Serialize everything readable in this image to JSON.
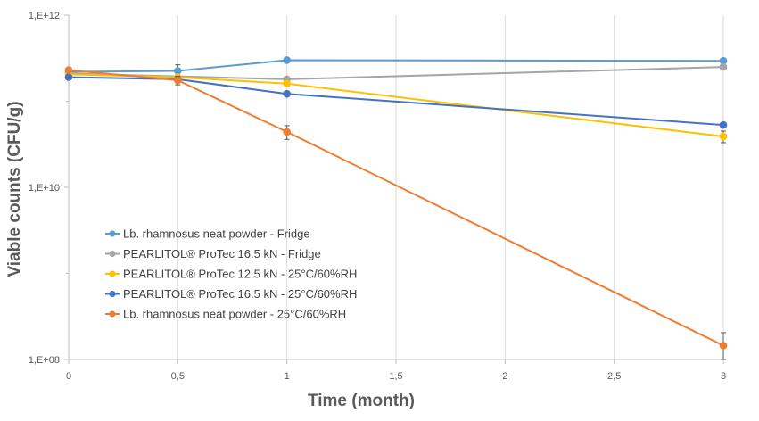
{
  "chart_data": {
    "type": "line",
    "title": "",
    "xlabel": "Time (month)",
    "ylabel": "Viable counts (CFU/g)",
    "yscale": "log",
    "xlim": [
      0,
      3
    ],
    "ylim": [
      100000000,
      1000000000000
    ],
    "x_ticks": [
      0,
      0.5,
      1,
      1.5,
      2,
      2.5,
      3
    ],
    "x_tick_labels": [
      "0",
      "0,5",
      "1",
      "1,5",
      "2",
      "2,5",
      "3"
    ],
    "y_ticks": [
      100000000,
      10000000000,
      1000000000000
    ],
    "y_tick_labels": [
      "1,E+08",
      "1,E+10",
      "1,E+12"
    ],
    "grid": "vertical",
    "legend_position": "bottom-left",
    "series": [
      {
        "name": "Lb. rhamnosus neat powder - Fridge",
        "color": "#5B9BD5",
        "x": [
          0,
          0.5,
          1,
          3
        ],
        "y": [
          220000000000,
          225000000000,
          300000000000,
          295000000000
        ],
        "err": [
          null,
          40000000000,
          null,
          null
        ]
      },
      {
        "name": "PEARLITOL® ProTec 16.5 kN - Fridge",
        "color": "#A5A5A5",
        "x": [
          0,
          1,
          3
        ],
        "y": [
          210000000000,
          180000000000,
          250000000000
        ],
        "err": [
          null,
          null,
          null
        ]
      },
      {
        "name": "PEARLITOL® ProTec 12.5 kN - 25°C/60%RH",
        "color": "#FFC000",
        "x": [
          0,
          0.5,
          1,
          3
        ],
        "y": [
          205000000000,
          190000000000,
          160000000000,
          39000000000
        ],
        "err": [
          null,
          null,
          null,
          6000000000
        ]
      },
      {
        "name": "PEARLITOL® ProTec 16.5 kN - 25°C/60%RH",
        "color": "#4472C4",
        "x": [
          0,
          0.5,
          1,
          3
        ],
        "y": [
          190000000000,
          180000000000,
          122000000000,
          53000000000
        ],
        "err": [
          null,
          null,
          null,
          null
        ]
      },
      {
        "name": "Lb. rhamnosus neat powder - 25°C/60%RH",
        "color": "#ED7D31",
        "x": [
          0,
          0.5,
          1,
          3
        ],
        "y": [
          230000000000,
          175000000000,
          44000000000,
          145000000
        ],
        "err": [
          null,
          20000000000,
          8000000000,
          60000000
        ]
      }
    ]
  }
}
